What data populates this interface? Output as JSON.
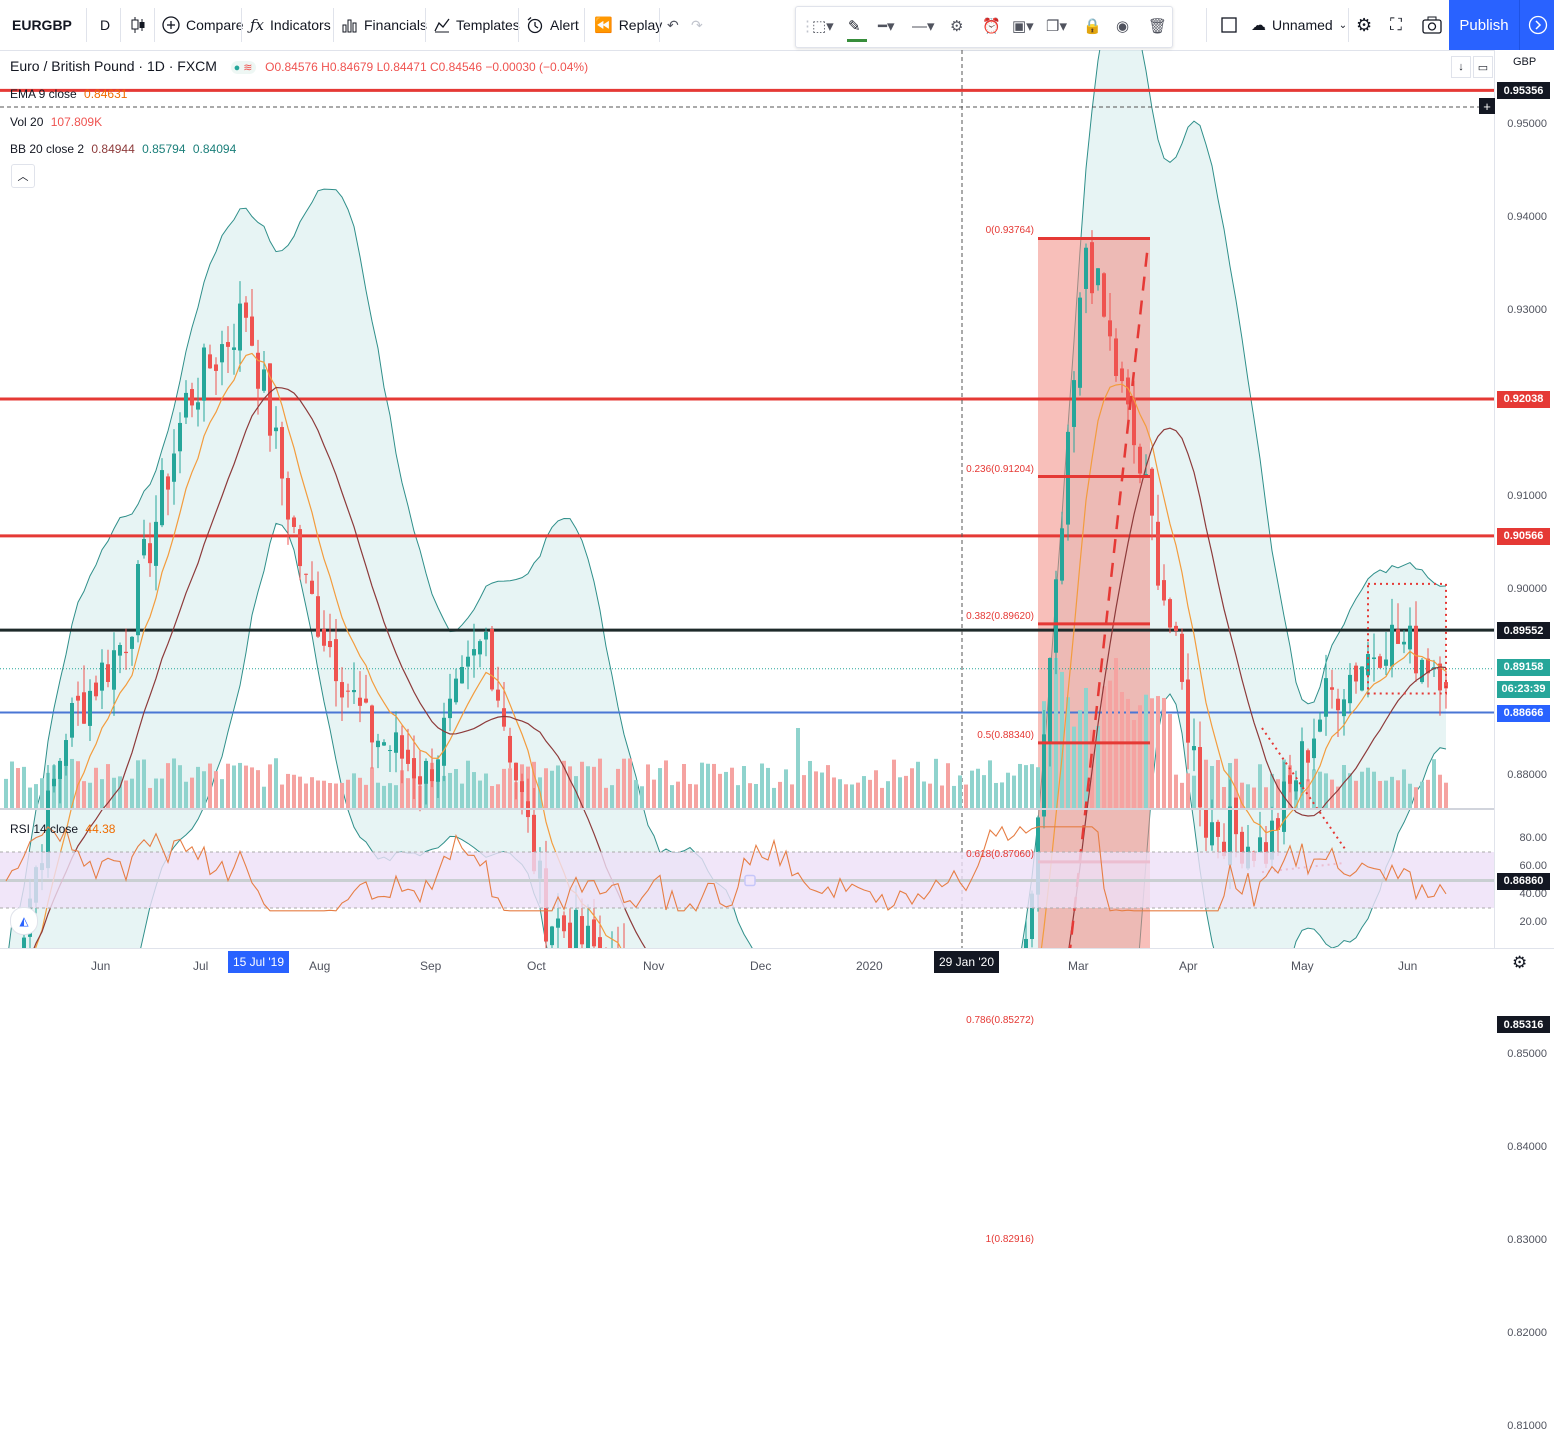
{
  "toolbar": {
    "symbol": "EURGBP",
    "interval": "D",
    "compare": "Compare",
    "indicators": "Indicators",
    "financials": "Financials",
    "templates": "Templates",
    "alert": "Alert",
    "replay": "Replay",
    "layout_name": "Unnamed",
    "publish": "Publish"
  },
  "legend": {
    "title": "Euro / British Pound · 1D · FXCM",
    "ohlc": "O0.84576 H0.84679 L0.84471 C0.84546 −0.00030 (−0.04%)",
    "ema_label": "EMA 9 close",
    "ema_value": "0.84631",
    "vol_label": "Vol 20",
    "vol_value": "107.809K",
    "bb_label": "BB 20 close 2",
    "bb_basis": "0.84944",
    "bb_upper": "0.85794",
    "bb_lower": "0.84094",
    "rsi_label": "RSI 14 close",
    "rsi_value": "44.38"
  },
  "price_axis": {
    "currency": "GBP",
    "ticks": [
      "0.95000",
      "0.94000",
      "0.93000",
      "0.92000",
      "0.91000",
      "0.90000",
      "0.88000",
      "0.86000",
      "0.85000",
      "0.84000",
      "0.83000",
      "0.82000",
      "0.81000"
    ],
    "rsi_ticks": [
      "80.00",
      "60.00",
      "40.00",
      "20.00"
    ],
    "badges": [
      {
        "label": "0.95356",
        "color": "#131722"
      },
      {
        "label": "0.92038",
        "color": "#e53935"
      },
      {
        "label": "0.90566",
        "color": "#e53935"
      },
      {
        "label": "0.89552",
        "color": "#131722"
      },
      {
        "label": "0.89158",
        "color": "#26a69a"
      },
      {
        "label": "06:23:39",
        "color": "#26a69a"
      },
      {
        "label": "0.88666",
        "color": "#2962ff"
      },
      {
        "label": "0.86860",
        "color": "#131722"
      },
      {
        "label": "0.85316",
        "color": "#131722"
      }
    ]
  },
  "time_axis": {
    "labels": [
      "Jun",
      "Jul",
      "Aug",
      "Sep",
      "Oct",
      "Nov",
      "Dec",
      "2020",
      "Mar",
      "Apr",
      "May",
      "Jun"
    ],
    "crosshair_date_1": "15 Jul '19",
    "crosshair_date_2": "29 Jan '20"
  },
  "fib_levels": [
    {
      "label": "0(0.93764)"
    },
    {
      "label": "0.236(0.91204)"
    },
    {
      "label": "0.382(0.89620)"
    },
    {
      "label": "0.5(0.88340)"
    },
    {
      "label": "0.618(0.87060)"
    },
    {
      "label": "0.786(0.85272)"
    },
    {
      "label": "1(0.82916)"
    }
  ],
  "colors": {
    "bull": "#26a69a",
    "bear": "#ef5350",
    "resistance": "#e53935",
    "support_dark": "#131722",
    "support_green": "#388e3c",
    "blue_line": "#4a76d4",
    "accent": "#2962ff",
    "fib_zone": "#f28b82",
    "bb_fill": "#d7ecec",
    "rsi_band": "#ede0f7"
  },
  "chart_data": {
    "type": "candlestick",
    "title": "Euro / British Pound · 1D · FXCM",
    "ylim": [
      0.805,
      0.955
    ],
    "horizontal_levels": [
      0.95356,
      0.92038,
      0.90566,
      0.89552,
      0.88666,
      0.8686,
      0.85316
    ],
    "close_path": [
      [
        "May '19",
        0.855
      ],
      [
        "Jun '19",
        0.885
      ],
      [
        "Jul '19",
        0.895
      ],
      [
        "Aug '19",
        0.92
      ],
      [
        "Aug '19",
        0.93
      ],
      [
        "Sep '19",
        0.9
      ],
      [
        "Sep '19",
        0.885
      ],
      [
        "Oct '19",
        0.88
      ],
      [
        "Oct '19",
        0.895
      ],
      [
        "Oct '19",
        0.865
      ],
      [
        "Nov '19",
        0.86
      ],
      [
        "Dec '19",
        0.85
      ],
      [
        "Dec '19",
        0.835
      ],
      [
        "Jan '20",
        0.852
      ],
      [
        "Jan '20",
        0.845
      ],
      [
        "Feb '20",
        0.835
      ],
      [
        "Feb '20",
        0.83
      ],
      [
        "Mar '20",
        0.86
      ],
      [
        "Mar '20",
        0.937
      ],
      [
        "Apr '20",
        0.91
      ],
      [
        "Apr '20",
        0.875
      ],
      [
        "May '20",
        0.872
      ],
      [
        "May '20",
        0.888
      ],
      [
        "Jun '20",
        0.895
      ],
      [
        "Jun '20",
        0.8915
      ]
    ],
    "rsi_last": 44.38,
    "series": [
      {
        "name": "EMA 9 close",
        "last": 0.84631
      },
      {
        "name": "BB 20 close 2",
        "basis": 0.84944,
        "upper": 0.85794,
        "lower": 0.84094
      }
    ]
  }
}
